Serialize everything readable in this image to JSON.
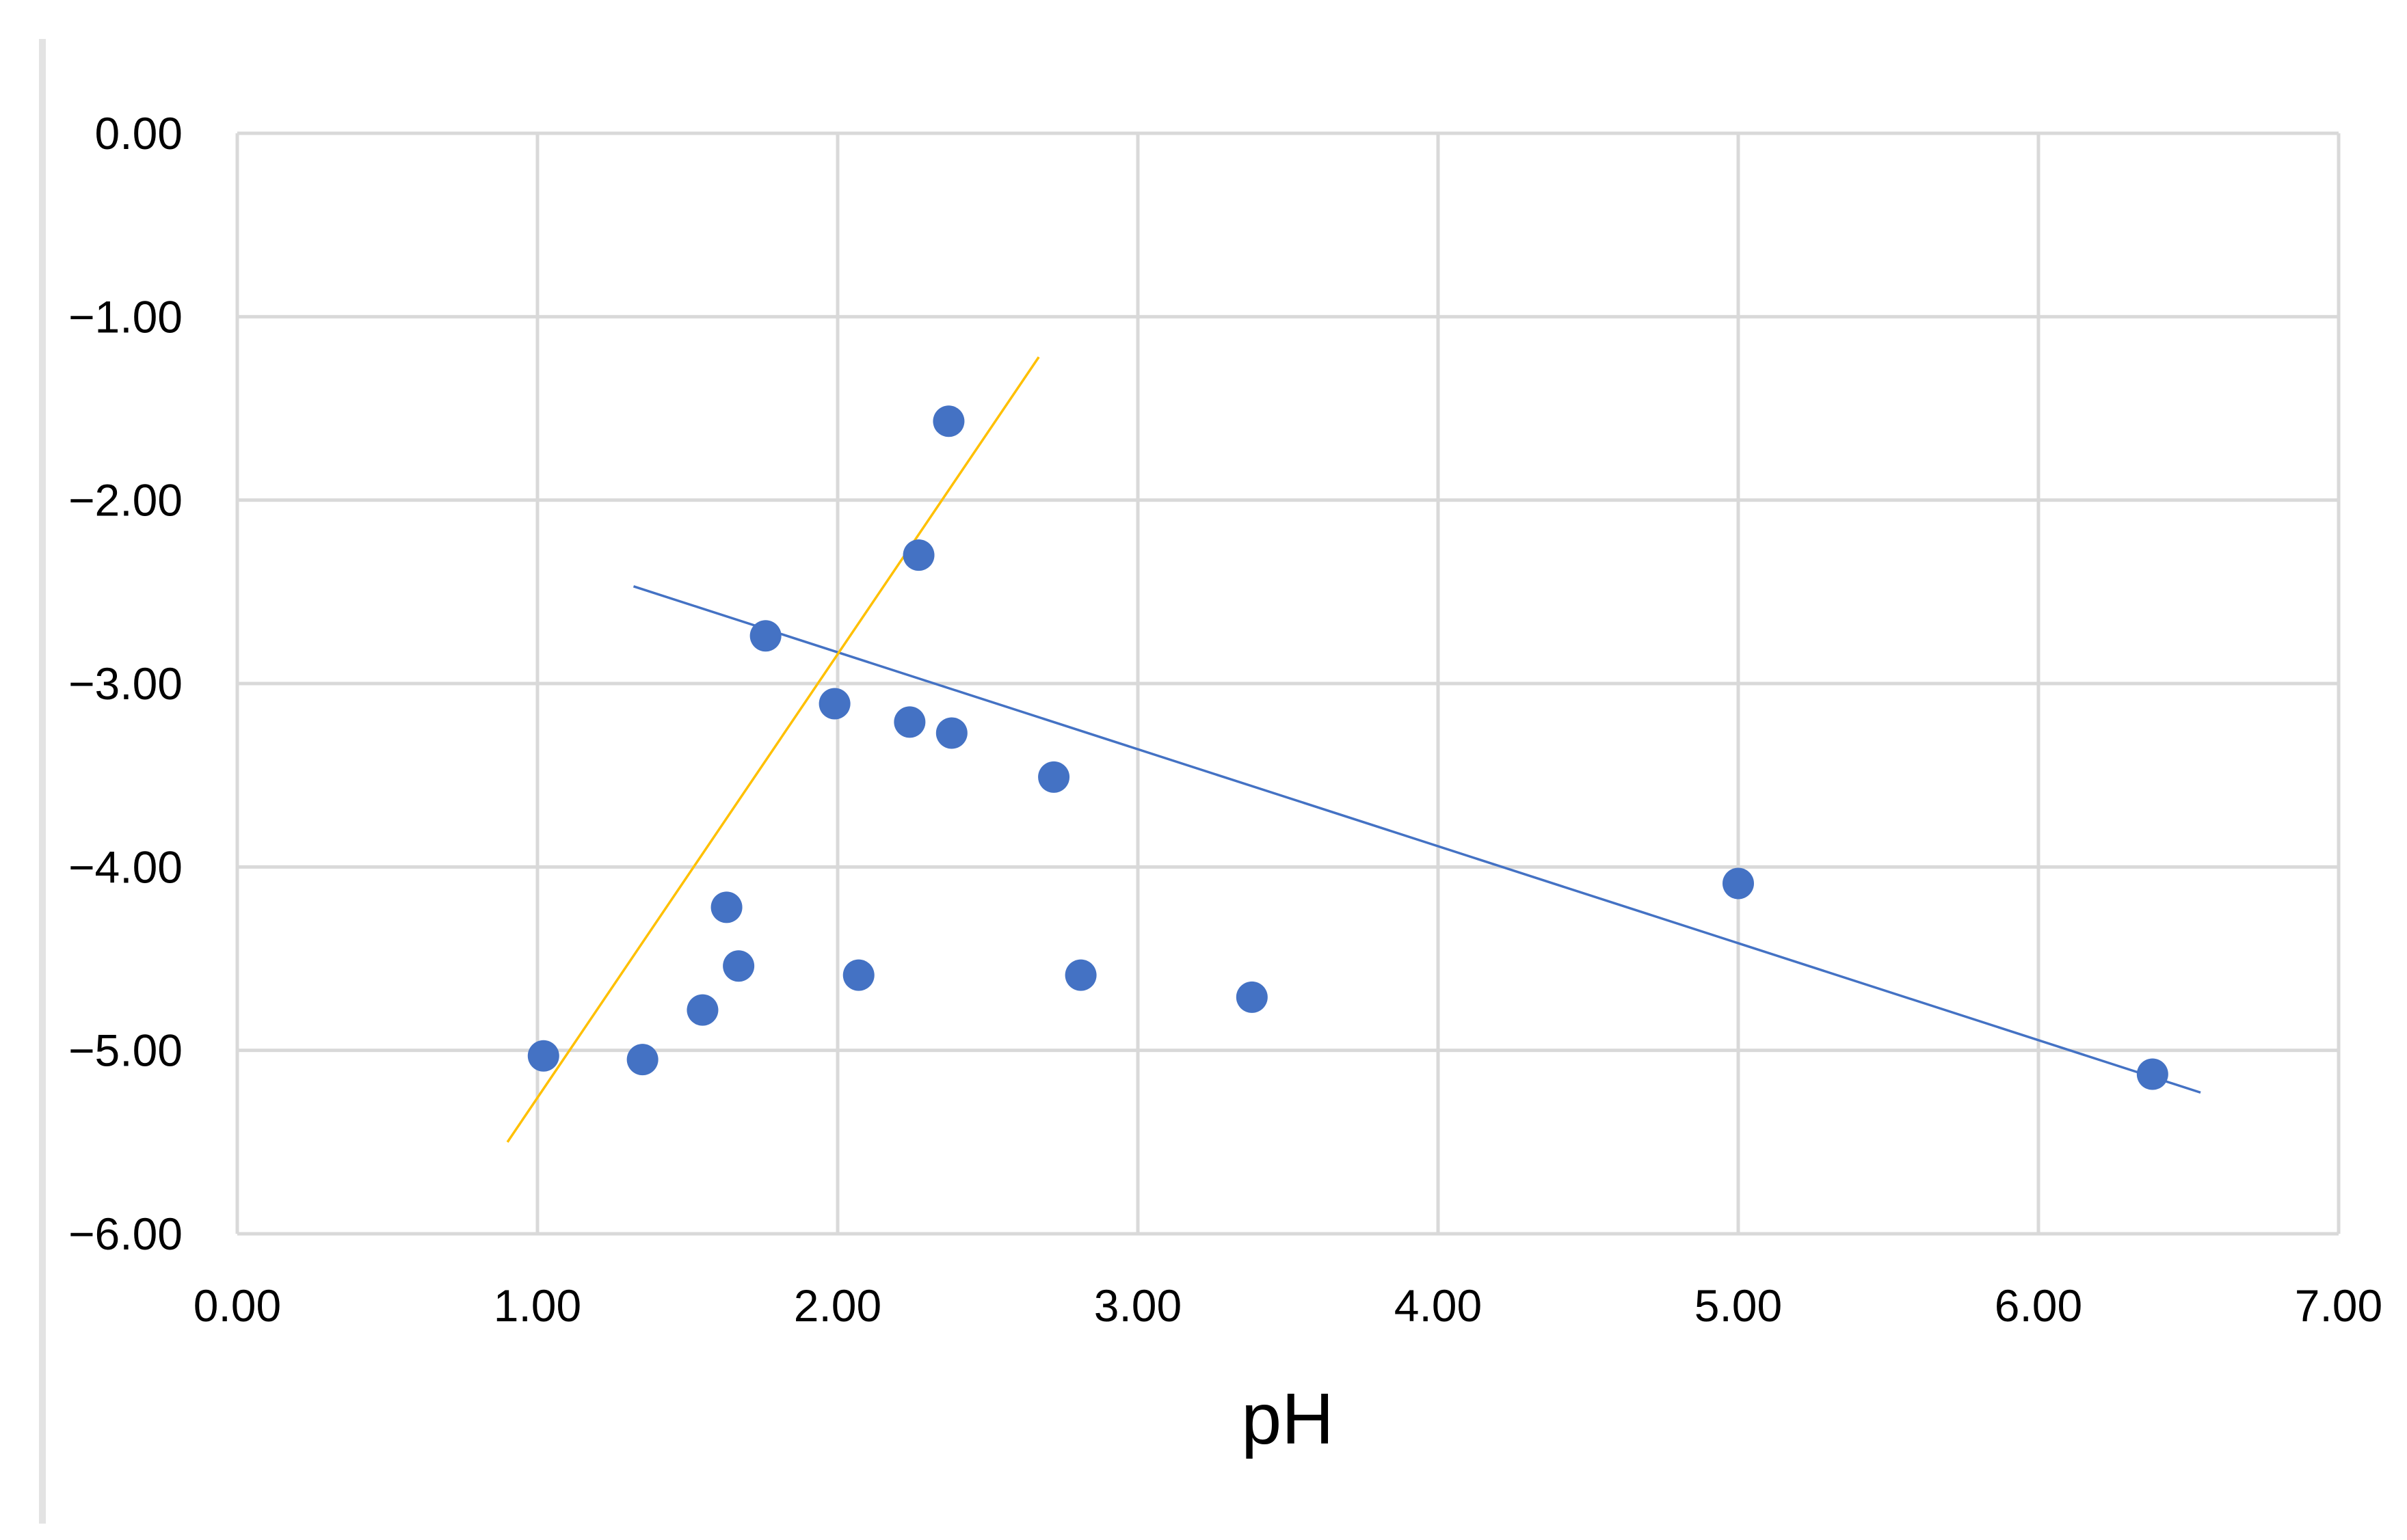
{
  "chart_data": {
    "type": "scatter",
    "title": "",
    "xlabel": "pH",
    "ylabel": "",
    "xlim": [
      0,
      7
    ],
    "ylim": [
      -6,
      0
    ],
    "x_ticks": [
      "0.00",
      "1.00",
      "2.00",
      "3.00",
      "4.00",
      "5.00",
      "6.00",
      "7.00"
    ],
    "y_ticks": [
      "0.00",
      "−1.00",
      "−2.00",
      "−3.00",
      "−4.00",
      "−5.00",
      "−6.00"
    ],
    "grid": true,
    "legend": "none",
    "series": [
      {
        "color": "#4472c4",
        "points": [
          {
            "x": 1.02,
            "y": -5.03
          },
          {
            "x": 1.35,
            "y": -5.05
          },
          {
            "x": 1.55,
            "y": -4.78
          },
          {
            "x": 1.63,
            "y": -4.22
          },
          {
            "x": 1.67,
            "y": -4.54
          },
          {
            "x": 1.76,
            "y": -2.74
          },
          {
            "x": 1.99,
            "y": -3.11
          },
          {
            "x": 2.07,
            "y": -4.59
          },
          {
            "x": 2.24,
            "y": -3.21
          },
          {
            "x": 2.27,
            "y": -2.3
          },
          {
            "x": 2.37,
            "y": -1.57
          },
          {
            "x": 2.38,
            "y": -3.27
          },
          {
            "x": 2.72,
            "y": -3.51
          },
          {
            "x": 2.81,
            "y": -4.59
          },
          {
            "x": 3.38,
            "y": -4.71
          },
          {
            "x": 5.0,
            "y": -4.09
          },
          {
            "x": 6.38,
            "y": -5.13
          }
        ]
      }
    ],
    "trendlines": [
      {
        "color": "#4472c4",
        "x": [
          1.32,
          6.54
        ],
        "y": [
          -2.47,
          -5.23
        ]
      },
      {
        "color": "#ffc000",
        "x": [
          0.9,
          2.67
        ],
        "y": [
          -5.5,
          -1.22
        ]
      }
    ]
  }
}
